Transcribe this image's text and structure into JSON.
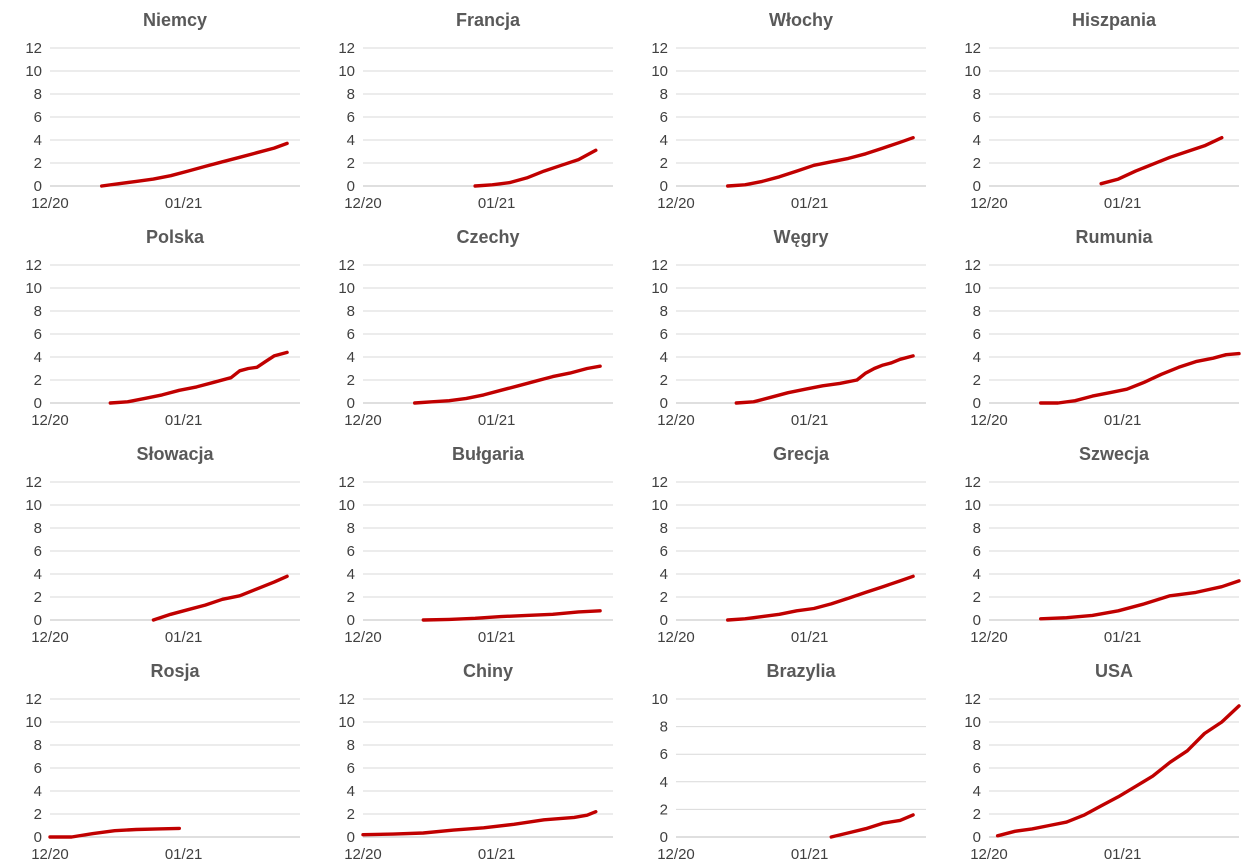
{
  "colors": {
    "series": "#c00000",
    "grid": "#d9d9d9",
    "text": "#404040",
    "title": "#595959"
  },
  "chart_data": [
    {
      "type": "line",
      "title": "Niemcy",
      "grid": true,
      "xlim": [
        0,
        58
      ],
      "ylim": [
        0,
        12
      ],
      "yticks": [
        0,
        2,
        4,
        6,
        8,
        10,
        12
      ],
      "xticks": [
        {
          "x": 0,
          "label": "12/20"
        },
        {
          "x": 31,
          "label": "01/21"
        }
      ],
      "series": [
        {
          "x": [
            12,
            16,
            20,
            24,
            28,
            32,
            36,
            40,
            44,
            48,
            52,
            55
          ],
          "y": [
            0,
            0.2,
            0.4,
            0.6,
            0.9,
            1.3,
            1.7,
            2.1,
            2.5,
            2.9,
            3.3,
            3.7
          ]
        }
      ]
    },
    {
      "type": "line",
      "title": "Francja",
      "grid": true,
      "xlim": [
        0,
        58
      ],
      "ylim": [
        0,
        12
      ],
      "yticks": [
        0,
        2,
        4,
        6,
        8,
        10,
        12
      ],
      "xticks": [
        {
          "x": 0,
          "label": "12/20"
        },
        {
          "x": 31,
          "label": "01/21"
        }
      ],
      "series": [
        {
          "x": [
            26,
            30,
            34,
            38,
            42,
            46,
            50,
            54
          ],
          "y": [
            0,
            0.1,
            0.3,
            0.7,
            1.3,
            1.8,
            2.3,
            3.1
          ]
        }
      ]
    },
    {
      "type": "line",
      "title": "Włochy",
      "grid": true,
      "xlim": [
        0,
        58
      ],
      "ylim": [
        0,
        12
      ],
      "yticks": [
        0,
        2,
        4,
        6,
        8,
        10,
        12
      ],
      "xticks": [
        {
          "x": 0,
          "label": "12/20"
        },
        {
          "x": 31,
          "label": "01/21"
        }
      ],
      "series": [
        {
          "x": [
            12,
            16,
            20,
            24,
            28,
            32,
            36,
            40,
            44,
            48,
            52,
            55
          ],
          "y": [
            0,
            0.1,
            0.4,
            0.8,
            1.3,
            1.8,
            2.1,
            2.4,
            2.8,
            3.3,
            3.8,
            4.2
          ]
        }
      ]
    },
    {
      "type": "line",
      "title": "Hiszpania",
      "grid": true,
      "xlim": [
        0,
        58
      ],
      "ylim": [
        0,
        12
      ],
      "yticks": [
        0,
        2,
        4,
        6,
        8,
        10,
        12
      ],
      "xticks": [
        {
          "x": 0,
          "label": "12/20"
        },
        {
          "x": 31,
          "label": "01/21"
        }
      ],
      "series": [
        {
          "x": [
            26,
            30,
            34,
            38,
            42,
            46,
            50,
            54
          ],
          "y": [
            0.2,
            0.6,
            1.3,
            1.9,
            2.5,
            3.0,
            3.5,
            4.2
          ]
        }
      ]
    },
    {
      "type": "line",
      "title": "Polska",
      "grid": true,
      "xlim": [
        0,
        58
      ],
      "ylim": [
        0,
        12
      ],
      "yticks": [
        0,
        2,
        4,
        6,
        8,
        10,
        12
      ],
      "xticks": [
        {
          "x": 0,
          "label": "12/20"
        },
        {
          "x": 31,
          "label": "01/21"
        }
      ],
      "series": [
        {
          "x": [
            14,
            18,
            22,
            26,
            30,
            34,
            38,
            42,
            44,
            46,
            48,
            50,
            52,
            55
          ],
          "y": [
            0,
            0.1,
            0.4,
            0.7,
            1.1,
            1.4,
            1.8,
            2.2,
            2.8,
            3.0,
            3.1,
            3.6,
            4.1,
            4.4
          ]
        }
      ]
    },
    {
      "type": "line",
      "title": "Czechy",
      "grid": true,
      "xlim": [
        0,
        58
      ],
      "ylim": [
        0,
        12
      ],
      "yticks": [
        0,
        2,
        4,
        6,
        8,
        10,
        12
      ],
      "xticks": [
        {
          "x": 0,
          "label": "12/20"
        },
        {
          "x": 31,
          "label": "01/21"
        }
      ],
      "series": [
        {
          "x": [
            12,
            16,
            20,
            24,
            28,
            32,
            36,
            40,
            44,
            48,
            52,
            55
          ],
          "y": [
            0,
            0.1,
            0.2,
            0.4,
            0.7,
            1.1,
            1.5,
            1.9,
            2.3,
            2.6,
            3.0,
            3.2
          ]
        }
      ]
    },
    {
      "type": "line",
      "title": "Węgry",
      "grid": true,
      "xlim": [
        0,
        58
      ],
      "ylim": [
        0,
        12
      ],
      "yticks": [
        0,
        2,
        4,
        6,
        8,
        10,
        12
      ],
      "xticks": [
        {
          "x": 0,
          "label": "12/20"
        },
        {
          "x": 31,
          "label": "01/21"
        }
      ],
      "series": [
        {
          "x": [
            14,
            18,
            22,
            26,
            30,
            34,
            38,
            42,
            44,
            46,
            48,
            50,
            52,
            55
          ],
          "y": [
            0,
            0.1,
            0.5,
            0.9,
            1.2,
            1.5,
            1.7,
            2.0,
            2.6,
            3.0,
            3.3,
            3.5,
            3.8,
            4.1
          ]
        }
      ]
    },
    {
      "type": "line",
      "title": "Rumunia",
      "grid": true,
      "xlim": [
        0,
        58
      ],
      "ylim": [
        0,
        12
      ],
      "yticks": [
        0,
        2,
        4,
        6,
        8,
        10,
        12
      ],
      "xticks": [
        {
          "x": 0,
          "label": "12/20"
        },
        {
          "x": 31,
          "label": "01/21"
        }
      ],
      "series": [
        {
          "x": [
            12,
            16,
            20,
            24,
            28,
            32,
            36,
            40,
            44,
            48,
            52,
            55,
            58
          ],
          "y": [
            0,
            0,
            0.2,
            0.6,
            0.9,
            1.2,
            1.8,
            2.5,
            3.1,
            3.6,
            3.9,
            4.2,
            4.3
          ]
        }
      ]
    },
    {
      "type": "line",
      "title": "Słowacja",
      "grid": true,
      "xlim": [
        0,
        58
      ],
      "ylim": [
        0,
        12
      ],
      "yticks": [
        0,
        2,
        4,
        6,
        8,
        10,
        12
      ],
      "xticks": [
        {
          "x": 0,
          "label": "12/20"
        },
        {
          "x": 31,
          "label": "01/21"
        }
      ],
      "series": [
        {
          "x": [
            24,
            28,
            32,
            36,
            40,
            44,
            48,
            52,
            55
          ],
          "y": [
            0,
            0.5,
            0.9,
            1.3,
            1.8,
            2.1,
            2.7,
            3.3,
            3.8
          ]
        }
      ]
    },
    {
      "type": "line",
      "title": "Bułgaria",
      "grid": true,
      "xlim": [
        0,
        58
      ],
      "ylim": [
        0,
        12
      ],
      "yticks": [
        0,
        2,
        4,
        6,
        8,
        10,
        12
      ],
      "xticks": [
        {
          "x": 0,
          "label": "12/20"
        },
        {
          "x": 31,
          "label": "01/21"
        }
      ],
      "series": [
        {
          "x": [
            14,
            20,
            26,
            32,
            38,
            44,
            50,
            55
          ],
          "y": [
            0,
            0.05,
            0.15,
            0.3,
            0.4,
            0.5,
            0.7,
            0.8
          ]
        }
      ]
    },
    {
      "type": "line",
      "title": "Grecja",
      "grid": true,
      "xlim": [
        0,
        58
      ],
      "ylim": [
        0,
        12
      ],
      "yticks": [
        0,
        2,
        4,
        6,
        8,
        10,
        12
      ],
      "xticks": [
        {
          "x": 0,
          "label": "12/20"
        },
        {
          "x": 31,
          "label": "01/21"
        }
      ],
      "series": [
        {
          "x": [
            12,
            16,
            20,
            24,
            28,
            32,
            36,
            40,
            44,
            48,
            52,
            55
          ],
          "y": [
            0,
            0.1,
            0.3,
            0.5,
            0.8,
            1.0,
            1.4,
            1.9,
            2.4,
            2.9,
            3.4,
            3.8
          ]
        }
      ]
    },
    {
      "type": "line",
      "title": "Szwecja",
      "grid": true,
      "xlim": [
        0,
        58
      ],
      "ylim": [
        0,
        12
      ],
      "yticks": [
        0,
        2,
        4,
        6,
        8,
        10,
        12
      ],
      "xticks": [
        {
          "x": 0,
          "label": "12/20"
        },
        {
          "x": 31,
          "label": "01/21"
        }
      ],
      "series": [
        {
          "x": [
            12,
            18,
            24,
            30,
            36,
            42,
            48,
            54,
            58
          ],
          "y": [
            0.1,
            0.2,
            0.4,
            0.8,
            1.4,
            2.1,
            2.4,
            2.9,
            3.4
          ]
        }
      ]
    },
    {
      "type": "line",
      "title": "Rosja",
      "grid": true,
      "xlim": [
        0,
        58
      ],
      "ylim": [
        0,
        12
      ],
      "yticks": [
        0,
        2,
        4,
        6,
        8,
        10,
        12
      ],
      "xticks": [
        {
          "x": 0,
          "label": "12/20"
        },
        {
          "x": 31,
          "label": "01/21"
        }
      ],
      "series": [
        {
          "x": [
            0,
            5,
            10,
            15,
            20,
            25,
            30
          ],
          "y": [
            0,
            0,
            0.3,
            0.55,
            0.65,
            0.7,
            0.75
          ]
        }
      ]
    },
    {
      "type": "line",
      "title": "Chiny",
      "grid": true,
      "xlim": [
        0,
        58
      ],
      "ylim": [
        0,
        12
      ],
      "yticks": [
        0,
        2,
        4,
        6,
        8,
        10,
        12
      ],
      "xticks": [
        {
          "x": 0,
          "label": "12/20"
        },
        {
          "x": 31,
          "label": "01/21"
        }
      ],
      "series": [
        {
          "x": [
            0,
            7,
            14,
            21,
            28,
            35,
            42,
            49,
            52,
            54
          ],
          "y": [
            0.2,
            0.25,
            0.35,
            0.6,
            0.8,
            1.1,
            1.5,
            1.7,
            1.9,
            2.2
          ]
        }
      ]
    },
    {
      "type": "line",
      "title": "Brazylia",
      "grid": true,
      "xlim": [
        0,
        58
      ],
      "ylim": [
        0,
        10
      ],
      "yticks": [
        0,
        2,
        4,
        6,
        8,
        10
      ],
      "xticks": [
        {
          "x": 0,
          "label": "12/20"
        },
        {
          "x": 31,
          "label": "01/21"
        }
      ],
      "series": [
        {
          "x": [
            36,
            40,
            44,
            48,
            52,
            55
          ],
          "y": [
            0,
            0.3,
            0.6,
            1.0,
            1.2,
            1.6
          ]
        }
      ]
    },
    {
      "type": "line",
      "title": "USA",
      "grid": true,
      "xlim": [
        0,
        58
      ],
      "ylim": [
        0,
        12
      ],
      "yticks": [
        0,
        2,
        4,
        6,
        8,
        10,
        12
      ],
      "xticks": [
        {
          "x": 0,
          "label": "12/20"
        },
        {
          "x": 31,
          "label": "01/21"
        }
      ],
      "series": [
        {
          "x": [
            2,
            6,
            10,
            14,
            18,
            22,
            26,
            30,
            34,
            38,
            42,
            46,
            50,
            54,
            58
          ],
          "y": [
            0.1,
            0.5,
            0.7,
            1.0,
            1.3,
            1.9,
            2.7,
            3.5,
            4.4,
            5.3,
            6.5,
            7.5,
            9.0,
            10.0,
            11.4
          ]
        }
      ]
    }
  ]
}
